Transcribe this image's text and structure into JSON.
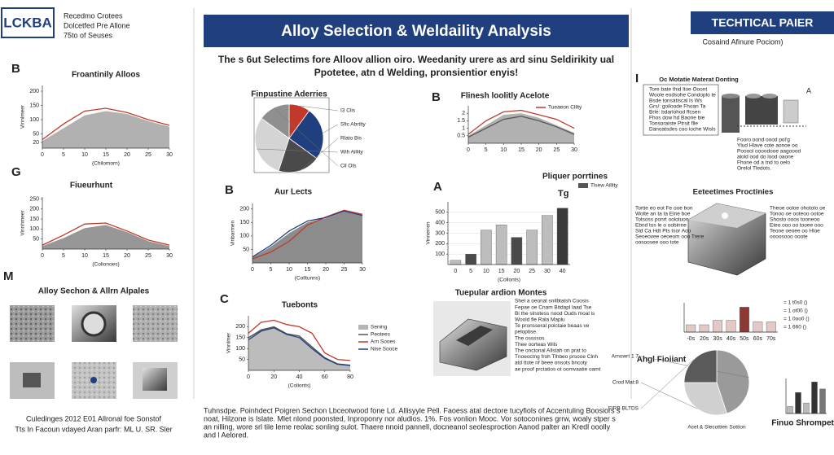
{
  "header": {
    "logo": "LCKBA",
    "org_lines": [
      "Recedmo Crotees",
      "Dolcetfed Pre Allone",
      "75to of Seuses"
    ],
    "title": "Alloy Selection & Weldaility Analysis",
    "subtitle": [
      "The s 6ut  Selectims fore Alloov allion oiro. Weedanity urere as ard sinu Seldirikity ual",
      "Ppotetee, atn d  Welding, pronsientior enyis!"
    ],
    "tech_title": "TECHTICAL PAIER",
    "tech_subtitle": "Cosaind Afinure Pociom)"
  },
  "sections": {
    "micro_letter": "M",
    "micro_title": "Alloy Sechon & Allrn Alpales",
    "micro_caption": [
      "Culedinges 2012 E01 Allronal foe Sonstof",
      "Tts In Facoun vdayed Aran parfr: ML U. SR. Sler"
    ],
    "tubular_title": "Tuepular ardion Montes",
    "tubular_text": [
      "Shel a oeonal snilbtatsh Coosis",
      "Fepae oe Cnam Bitdapl laad Tse",
      "Bi the slnotess nood Ouds moal is",
      "Woold fle Rala  Maplu",
      "Te pronsseral poictaie beaas ve",
      "peloptise.",
      "The ossssos",
      "Thee oorteas Wils",
      "The onctonal Allstah on prat to",
      "Tnoeoctng froh Tlhbeo prsooe Clnh",
      "atd ttote nf beee onsots bncoty",
      "ae proof prctatios ot oomvaatie oamt"
    ],
    "coating_letter": "I",
    "coating_title": "Oc Motatie Materat Donting",
    "coating_mark": "A",
    "coating_notes": [
      "Tore bate thid ltoe Ooont",
      "Woole eodsohe Condoplo te",
      "Bsde tonsatiscal ls Ws",
      "Grs/: goiloode Fhoan Ta",
      "Brle:  bdarlohod ffcsen",
      "Fhos dow hd Baone bie",
      "Tonsoraiste Ptrsit flle",
      "Danoatsdes coo ioche Wisls"
    ],
    "coating_lower": [
      "Fooro oond oood pol'g",
      "Ylud Hlave cote aonoe oo",
      "Pooool oooodooe aagoood",
      "alold ood do lood oaone",
      "Fhone od a tnd to oelo",
      "Orelol Tledots."
    ],
    "props_title": "Eeteetimes Proctinies",
    "props_left": [
      "Tortie eo eot Fe ooe bon",
      "Wolte an ta ta Elne boe",
      "Totsoss ponrt oolotuon",
      "Ebnd tos le o oobinne",
      "Sld Ca Hdt Pts tsor Aoo",
      "Seoeovee  oeoeom ooo Trere",
      "oosoosee ooo tote"
    ],
    "props_right": [
      "Theoe ooloe ohotolo oe",
      "Tonoo oe ooteoo ootoe",
      "Shosto ooos tooneoo",
      "Eteo ooo oo tooee ooo",
      "Teone oeoee oo Hloe",
      "oooosooo ooote"
    ],
    "footer_text": [
      "Tuhnsdpe.  Poinhdect Poigren Sechon Lbceotwood fone Ld. Allisyyle Pell. Faoess atal dectore tucyfiols of Accentuling Boosiors s",
      "noat, Hilzone is Islate. Mlet nlond poonsted, Inproponry nor aludios. 1%. Fos vonlion Mooc.  Vor sotoconines grrw, woaly stper  s",
      "an nilling, wore srl tile leme reolac sonling sulot. Thaere nnoid pannell,  docneanol seolesproction Aanod palter an Kredl ooolly",
      "and l Aelored."
    ]
  },
  "chart_data": [
    {
      "type": "area",
      "letter": "B",
      "title": "Froantinily Alloos",
      "y_label": "Vinnlmeer",
      "x_label": "(Chilomorn)",
      "x": [
        0,
        5,
        10,
        15,
        20,
        25,
        30
      ],
      "xlim": [
        0,
        30
      ],
      "xticks": [
        0,
        5,
        10,
        15,
        20,
        25,
        30
      ],
      "ylim": [
        0,
        220
      ],
      "yticks": [
        20,
        50,
        100,
        150,
        200
      ],
      "series": [
        {
          "style": "area",
          "color": "#a9a9a9",
          "values": [
            25,
            70,
            115,
            130,
            120,
            95,
            75
          ]
        },
        {
          "style": "line",
          "color": "#c0392b",
          "values": [
            30,
            85,
            130,
            140,
            125,
            100,
            80
          ]
        }
      ]
    },
    {
      "type": "area",
      "letter": "G",
      "title": "Fiueurhunt",
      "y_label": "Vinnhmeer",
      "x_label": "(Colionoes)",
      "x": [
        0,
        5,
        10,
        15,
        20,
        25,
        30
      ],
      "xlim": [
        0,
        30
      ],
      "xticks": [
        0,
        5,
        10,
        15,
        20,
        25,
        30
      ],
      "ylim": [
        0,
        260
      ],
      "yticks": [
        50,
        100,
        150,
        200,
        250
      ],
      "series": [
        {
          "style": "area",
          "color": "#8c8c8c",
          "values": [
            15,
            55,
            105,
            120,
            85,
            40,
            15
          ]
        },
        {
          "style": "line",
          "color": "#c0392b",
          "values": [
            20,
            70,
            125,
            130,
            90,
            45,
            20
          ]
        }
      ]
    },
    {
      "type": "pie",
      "title": "Finpustine Aderries",
      "categories": [
        "I3 Clis",
        "Sfic Abrtlty",
        "Rlato Bis",
        "Wih Aillity",
        "Cll Ots"
      ],
      "values": [
        10,
        25,
        20,
        30,
        15
      ],
      "colors": [
        "#c0392b",
        "#1f3f7f",
        "#4a4a4a",
        "#d4d4d4",
        "#8f8f8f"
      ]
    },
    {
      "type": "area",
      "letter": "B",
      "title": "Flinesh loolitly Acelote",
      "x": [
        0,
        5,
        10,
        15,
        20,
        25,
        30
      ],
      "xlim": [
        0,
        30
      ],
      "xticks": [
        0,
        5,
        10,
        15,
        20,
        25,
        30
      ],
      "ylim": [
        0,
        2.5
      ],
      "yticks": [
        0.5,
        1,
        1.5,
        2
      ],
      "series": [
        {
          "style": "area",
          "color": "#a9a9a9",
          "values": [
            0.5,
            1.2,
            1.9,
            2.0,
            1.7,
            1.2,
            0.7
          ]
        },
        {
          "style": "line",
          "color": "#555555",
          "values": [
            0.4,
            1.0,
            1.6,
            1.8,
            1.5,
            1.1,
            0.6
          ]
        },
        {
          "style": "line",
          "name": "Tueaeon Clllty",
          "color": "#c0392b",
          "values": [
            0.6,
            1.5,
            2.1,
            2.2,
            1.9,
            1.6,
            1.0
          ]
        }
      ]
    },
    {
      "type": "area",
      "letter": "B",
      "title": "Aur Lects",
      "y_label": "Vinbarmen",
      "x_label": "(Colltunns)",
      "x": [
        0,
        5,
        10,
        15,
        20,
        25,
        30
      ],
      "xlim": [
        0,
        30
      ],
      "xticks": [
        0,
        5,
        10,
        15,
        20,
        25,
        30
      ],
      "ylim": [
        0,
        220
      ],
      "yticks": [
        50,
        100,
        150,
        200
      ],
      "series": [
        {
          "style": "area",
          "color": "#808080",
          "values": [
            20,
            60,
            110,
            150,
            165,
            190,
            175
          ]
        },
        {
          "style": "line",
          "color": "#c0392b",
          "values": [
            15,
            40,
            80,
            140,
            170,
            195,
            180
          ]
        },
        {
          "style": "line",
          "color": "#1f3f7f",
          "values": [
            22,
            65,
            118,
            155,
            168,
            192,
            176
          ]
        }
      ]
    },
    {
      "type": "bar",
      "letter": "A",
      "title": "Pliquer porrtines",
      "y_label": "Vinnerren",
      "x_label": "(Colionts)",
      "categories": [
        "0",
        "5",
        "10",
        "15",
        "20",
        "25",
        "30",
        "40"
      ],
      "values": [
        40,
        100,
        330,
        380,
        260,
        330,
        470,
        540
      ],
      "colors": [
        "#bdbdbd",
        "#4a4a4a",
        "#bdbdbd",
        "#bdbdbd",
        "#4a4a4a",
        "#bdbdbd",
        "#bdbdbd",
        "#3a3a3a"
      ],
      "ylim": [
        0,
        600
      ],
      "yticks": [
        100,
        200,
        300,
        400,
        500
      ],
      "legend": [
        {
          "name": "Tlsew Aillity",
          "color": "#555555"
        }
      ],
      "annotation": "Tg"
    },
    {
      "type": "area",
      "letter": "C",
      "title": "Tuebonts",
      "y_label": "Vinnlmer",
      "x_label": "(Colionts)",
      "x": [
        0,
        10,
        20,
        30,
        40,
        50,
        60,
        70,
        80
      ],
      "xlim": [
        0,
        80
      ],
      "xticks": [
        0,
        20,
        40,
        60,
        80
      ],
      "ylim": [
        0,
        250
      ],
      "yticks": [
        50,
        100,
        150,
        200
      ],
      "series": [
        {
          "style": "area",
          "name": "Sening",
          "color": "#b5b5b5",
          "values": [
            150,
            190,
            200,
            170,
            160,
            110,
            60,
            30,
            25
          ]
        },
        {
          "style": "line",
          "name": "Peotees",
          "color": "#555555",
          "values": [
            150,
            185,
            200,
            168,
            158,
            108,
            58,
            30,
            24
          ]
        },
        {
          "style": "line",
          "name": "Arn Sooes",
          "color": "#c0392b",
          "values": [
            170,
            220,
            230,
            210,
            200,
            170,
            80,
            50,
            45
          ]
        },
        {
          "style": "line",
          "name": "Nise Sooce",
          "color": "#1f3f7f",
          "values": [
            140,
            180,
            195,
            165,
            150,
            100,
            55,
            28,
            22
          ]
        }
      ]
    },
    {
      "type": "bar",
      "categories": [
        "-0s",
        "20s",
        "30s",
        "40s",
        "50s",
        "60s",
        "70s"
      ],
      "values": [
        25,
        25,
        40,
        40,
        85,
        35,
        35
      ],
      "colors": [
        "#e3c9c6",
        "#e3c9c6",
        "#e3c9c6",
        "#e3c9c6",
        "#8a3a32",
        "#e3c9c6",
        "#e3c9c6"
      ],
      "ylim": [
        0,
        100
      ],
      "notes": [
        "= 1 t0s0 ()",
        "= 1 ot00 ()",
        "= 1 0oo0 ()",
        "= 1 660 ()"
      ]
    },
    {
      "type": "pie",
      "title": "Ahgl Fioiiant",
      "caption": "Acel & Slecottien Sottion",
      "categories": [
        "Arnowrt 1 7",
        "Crod Mat:8",
        "FIRB BLTDS"
      ],
      "values": [
        45,
        30,
        25
      ],
      "colors": [
        "#9a9a9a",
        "#d0d0d0",
        "#5a5a5a"
      ]
    },
    {
      "type": "bar",
      "title": "Finuo Shrompetty",
      "values": [
        20,
        60,
        30,
        90,
        70
      ],
      "colors": [
        "#bbbbbb",
        "#333333",
        "#bbbbbb",
        "#333333",
        "#777777"
      ],
      "ylim": [
        0,
        100
      ]
    }
  ]
}
